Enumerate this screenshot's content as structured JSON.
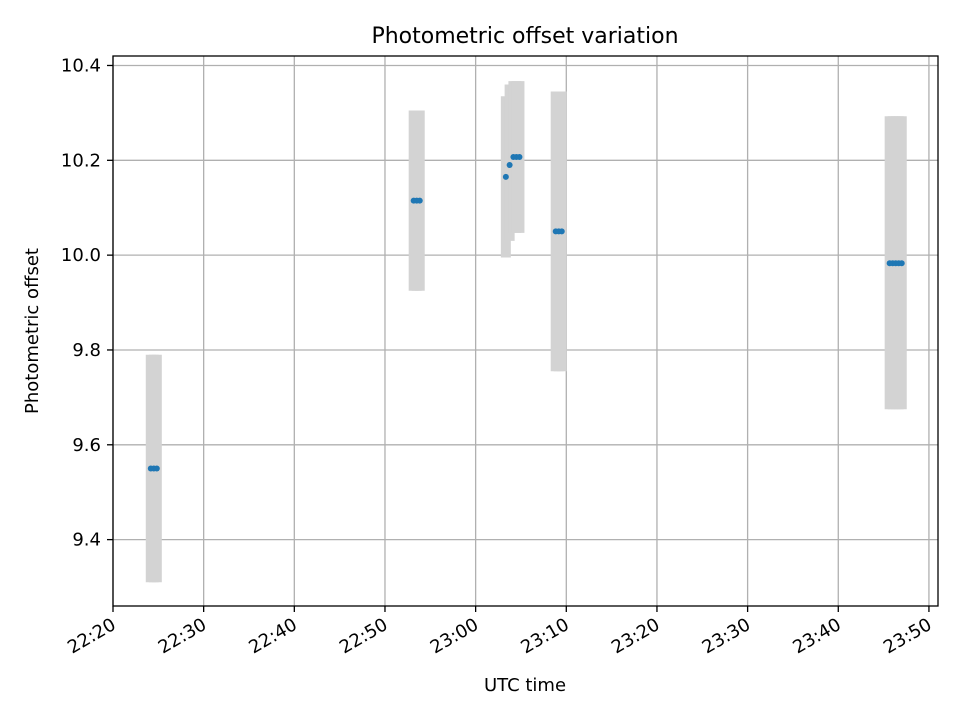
{
  "chart_data": {
    "type": "scatter",
    "title": "Photometric offset variation",
    "xlabel": "UTC time",
    "ylabel": "Photometric offset",
    "xlim": [
      "22:20",
      "23:51"
    ],
    "ylim": [
      9.26,
      10.42
    ],
    "x_ticks": [
      "22:20",
      "22:30",
      "22:40",
      "22:50",
      "23:00",
      "23:10",
      "23:20",
      "23:30",
      "23:40",
      "23:50"
    ],
    "y_ticks": [
      "9.4",
      "9.6",
      "9.8",
      "10.0",
      "10.2",
      "10.4"
    ],
    "grid": true,
    "colors": {
      "point": "#1f77b4",
      "errorbar": "#d3d3d3",
      "grid": "#b0b0b0"
    },
    "points": [
      {
        "x": "22:24:10",
        "y": 9.55,
        "err_low": 9.31,
        "err_high": 9.79
      },
      {
        "x": "22:24:30",
        "y": 9.55,
        "err_low": 9.31,
        "err_high": 9.79
      },
      {
        "x": "22:24:50",
        "y": 9.55,
        "err_low": 9.31,
        "err_high": 9.79
      },
      {
        "x": "22:53:10",
        "y": 10.115,
        "err_low": 9.925,
        "err_high": 10.305
      },
      {
        "x": "22:53:30",
        "y": 10.115,
        "err_low": 9.925,
        "err_high": 10.305
      },
      {
        "x": "22:53:50",
        "y": 10.115,
        "err_low": 9.925,
        "err_high": 10.305
      },
      {
        "x": "23:03:20",
        "y": 10.165,
        "err_low": 9.995,
        "err_high": 10.335
      },
      {
        "x": "23:03:45",
        "y": 10.19,
        "err_low": 10.03,
        "err_high": 10.36
      },
      {
        "x": "23:04:10",
        "y": 10.207,
        "err_low": 10.047,
        "err_high": 10.367
      },
      {
        "x": "23:04:30",
        "y": 10.207,
        "err_low": 10.047,
        "err_high": 10.367
      },
      {
        "x": "23:04:50",
        "y": 10.207,
        "err_low": 10.047,
        "err_high": 10.367
      },
      {
        "x": "23:08:50",
        "y": 10.05,
        "err_low": 9.755,
        "err_high": 10.345
      },
      {
        "x": "23:09:10",
        "y": 10.05,
        "err_low": 9.755,
        "err_high": 10.345
      },
      {
        "x": "23:09:30",
        "y": 10.05,
        "err_low": 9.755,
        "err_high": 10.345
      },
      {
        "x": "23:45:40",
        "y": 9.983,
        "err_low": 9.675,
        "err_high": 10.293
      },
      {
        "x": "23:46:00",
        "y": 9.983,
        "err_low": 9.675,
        "err_high": 10.293
      },
      {
        "x": "23:46:20",
        "y": 9.983,
        "err_low": 9.675,
        "err_high": 10.293
      },
      {
        "x": "23:46:40",
        "y": 9.983,
        "err_low": 9.675,
        "err_high": 10.293
      },
      {
        "x": "23:47:00",
        "y": 9.983,
        "err_low": 9.675,
        "err_high": 10.293
      }
    ]
  }
}
